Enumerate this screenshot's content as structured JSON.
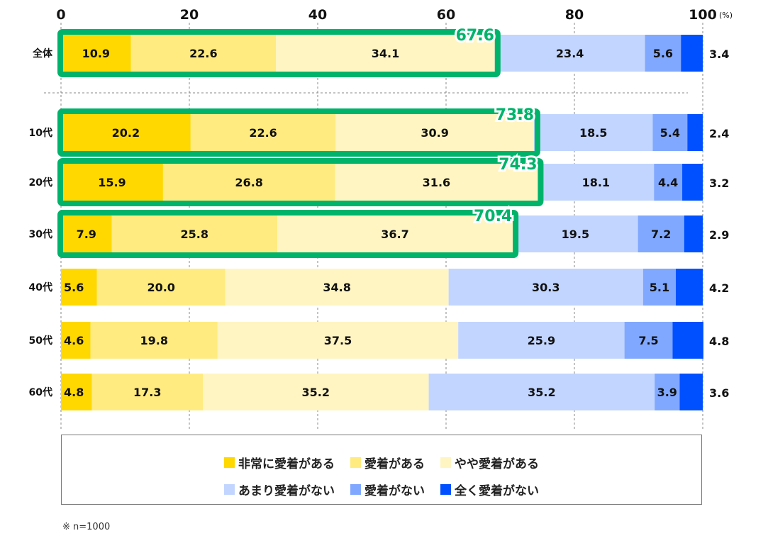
{
  "chart_data": {
    "type": "bar",
    "orientation": "horizontal",
    "stacked": true,
    "unit_label": "(%)",
    "xlim": [
      0,
      100
    ],
    "xticks": [
      "0",
      "20",
      "40",
      "60",
      "80",
      "100"
    ],
    "grid": true,
    "categories": [
      "全体",
      "10代",
      "20代",
      "30代",
      "40代",
      "50代",
      "60代"
    ],
    "series": [
      {
        "name": "非常に愛着がある",
        "color": "#FFD800",
        "values": [
          10.9,
          20.2,
          15.9,
          7.9,
          5.6,
          4.6,
          4.8
        ]
      },
      {
        "name": "愛着がある",
        "color": "#FFEB80",
        "values": [
          22.6,
          22.6,
          26.8,
          25.8,
          20.0,
          19.8,
          17.3
        ]
      },
      {
        "name": "やや愛着がある",
        "color": "#FFF5C2",
        "values": [
          34.1,
          30.9,
          31.6,
          36.7,
          34.8,
          37.5,
          35.2
        ]
      },
      {
        "name": "あまり愛着がない",
        "color": "#C2D5FF",
        "values": [
          23.4,
          18.5,
          18.1,
          19.5,
          30.3,
          25.9,
          35.2
        ]
      },
      {
        "name": "愛着がない",
        "color": "#80A8FF",
        "values": [
          5.6,
          5.4,
          4.4,
          7.2,
          5.1,
          7.5,
          3.9
        ]
      },
      {
        "name": "全く愛着がない",
        "color": "#0050FF",
        "values": [
          3.4,
          2.4,
          3.2,
          2.9,
          4.2,
          4.8,
          3.6
        ]
      }
    ],
    "highlight_totals": [
      67.6,
      73.8,
      74.3,
      70.4,
      null,
      null,
      null
    ],
    "highlight_color": "#00B36B",
    "legend_position": "bottom"
  },
  "note": "※ n=1000"
}
